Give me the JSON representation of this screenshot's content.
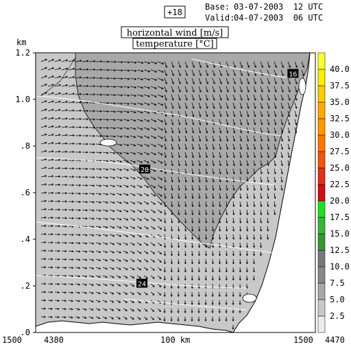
{
  "header": {
    "forecast_step": "+18",
    "base_label": "Base:",
    "base_value": "03-07-2003  12 UTC",
    "valid_label": "Valid:",
    "valid_value": "04-07-2003  06 UTC"
  },
  "legend_titles": {
    "line1": "horizontal wind [m/s]",
    "line2": "temperature [°C]"
  },
  "colors": {
    "shade_low": "#c8c8c8",
    "shade_mid": "#a8a8a8",
    "background_terrain": "#ffffff",
    "isotherm": "#ffffff",
    "arrows": "#000000"
  },
  "chart_data": {
    "type": "vertical cross-section",
    "y_axis": {
      "label": "km",
      "ylim": [
        0,
        1.2
      ],
      "ticks": [
        {
          "value": 0.0,
          "label": ".0"
        },
        {
          "value": 0.2,
          "label": ".2"
        },
        {
          "value": 0.4,
          "label": ".4"
        },
        {
          "value": 0.6,
          "label": ".6"
        },
        {
          "value": 0.8,
          "label": ".8"
        },
        {
          "value": 1.0,
          "label": "1.0"
        },
        {
          "value": 1.2,
          "label": "1.2"
        }
      ]
    },
    "x_axis": {
      "labels": [
        "1500",
        "4380",
        "100 km",
        "1500",
        "4470"
      ]
    },
    "colorbar": {
      "levels": [
        {
          "label": "2.5",
          "color": "#ececec"
        },
        {
          "label": "5.0",
          "color": "#c8c8c8"
        },
        {
          "label": "7.5",
          "color": "#a8a8a8"
        },
        {
          "label": "10.0",
          "color": "#888888"
        },
        {
          "label": "12.5",
          "color": "#787878"
        },
        {
          "label": "15.0",
          "color": "#339933"
        },
        {
          "label": "17.5",
          "color": "#33b833"
        },
        {
          "label": "20.0",
          "color": "#22dd22"
        },
        {
          "label": "22.5",
          "color": "#cc1111"
        },
        {
          "label": "25.0",
          "color": "#dd3311"
        },
        {
          "label": "27.5",
          "color": "#ee5511"
        },
        {
          "label": "30.0",
          "color": "#ff7700"
        },
        {
          "label": "32.5",
          "color": "#ff9900"
        },
        {
          "label": "35.0",
          "color": "#ffaa00"
        },
        {
          "label": "37.5",
          "color": "#ffcc00"
        },
        {
          "label": "40.0",
          "color": "#ffee00"
        },
        {
          "label": "",
          "color": "#ffff33"
        }
      ]
    },
    "isotherm_labels": [
      {
        "label": "16",
        "x": 0.92,
        "y": 1.11
      },
      {
        "label": "20",
        "x": 0.39,
        "y": 0.7
      },
      {
        "label": "24",
        "x": 0.38,
        "y": 0.21
      }
    ]
  }
}
